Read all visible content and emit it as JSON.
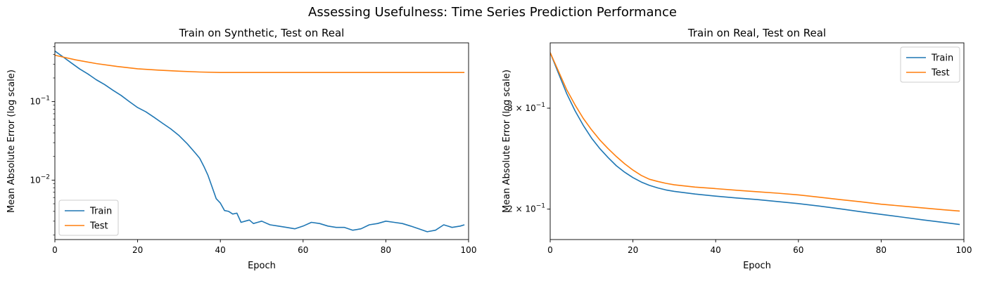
{
  "figure_title": "Assessing Usefulness: Time Series Prediction Performance",
  "colors": {
    "train": "#1f77b4",
    "test": "#ff7f0e"
  },
  "chart_data": [
    {
      "type": "line",
      "title": "Train on Synthetic, Test on Real",
      "xlabel": "Epoch",
      "ylabel": "Mean Absolute Error (log scale)",
      "yscale": "log",
      "xlim": [
        0,
        100
      ],
      "ylim": [
        0.00175,
        0.56
      ],
      "xticks": [
        0,
        20,
        40,
        60,
        80,
        100
      ],
      "yticks": [
        {
          "value": 0.01,
          "base": "10",
          "exp": "−2"
        },
        {
          "value": 0.1,
          "base": "10",
          "exp": "−1"
        }
      ],
      "grid": false,
      "legend_position": "lower-left",
      "series": [
        {
          "name": "Train",
          "x": [
            0,
            2,
            4,
            6,
            8,
            10,
            12,
            14,
            16,
            18,
            20,
            22,
            24,
            26,
            28,
            30,
            32,
            34,
            35,
            36,
            37,
            38,
            39,
            40,
            41,
            42,
            43,
            44,
            45,
            46,
            47,
            48,
            49,
            50,
            52,
            54,
            56,
            58,
            60,
            62,
            64,
            66,
            68,
            70,
            72,
            74,
            76,
            78,
            80,
            82,
            84,
            86,
            88,
            90,
            92,
            94,
            96,
            98,
            99
          ],
          "values": [
            0.44,
            0.37,
            0.31,
            0.26,
            0.225,
            0.19,
            0.165,
            0.14,
            0.12,
            0.1,
            0.084,
            0.074,
            0.063,
            0.053,
            0.045,
            0.037,
            0.029,
            0.022,
            0.019,
            0.015,
            0.0115,
            0.0082,
            0.0058,
            0.0051,
            0.0041,
            0.004,
            0.0037,
            0.0038,
            0.0029,
            0.003,
            0.0031,
            0.0028,
            0.0029,
            0.003,
            0.0027,
            0.0026,
            0.0025,
            0.0024,
            0.0026,
            0.0029,
            0.0028,
            0.0026,
            0.0025,
            0.0025,
            0.0023,
            0.0024,
            0.0027,
            0.0028,
            0.003,
            0.0029,
            0.0028,
            0.0026,
            0.0024,
            0.0022,
            0.0023,
            0.0027,
            0.0025,
            0.0026,
            0.0027
          ]
        },
        {
          "name": "Test",
          "x": [
            0,
            5,
            10,
            15,
            20,
            25,
            30,
            35,
            40,
            50,
            60,
            70,
            80,
            90,
            99
          ],
          "values": [
            0.39,
            0.34,
            0.305,
            0.28,
            0.262,
            0.252,
            0.244,
            0.238,
            0.235,
            0.235,
            0.235,
            0.235,
            0.235,
            0.235,
            0.235
          ]
        }
      ]
    },
    {
      "type": "line",
      "title": "Train on Real, Test on Real",
      "xlabel": "Epoch",
      "ylabel": "Mean Absolute Error (log scale)",
      "yscale": "log",
      "xlim": [
        0,
        100
      ],
      "ylim": [
        0.177,
        0.39
      ],
      "xticks": [
        0,
        20,
        40,
        60,
        80,
        100
      ],
      "yticks": [
        {
          "value": 0.2,
          "mant": "2",
          "base": "10",
          "exp": "−1"
        },
        {
          "value": 0.3,
          "mant": "3",
          "base": "10",
          "exp": "−1"
        }
      ],
      "grid": false,
      "legend_position": "top-right",
      "series": [
        {
          "name": "Train",
          "x": [
            0,
            2,
            4,
            6,
            8,
            10,
            12,
            14,
            16,
            18,
            20,
            22,
            24,
            26,
            28,
            30,
            35,
            40,
            45,
            50,
            55,
            60,
            65,
            70,
            75,
            80,
            85,
            90,
            95,
            99
          ],
          "values": [
            0.375,
            0.345,
            0.318,
            0.297,
            0.28,
            0.266,
            0.255,
            0.246,
            0.238,
            0.232,
            0.227,
            0.223,
            0.22,
            0.2178,
            0.216,
            0.2148,
            0.2125,
            0.2107,
            0.2092,
            0.2078,
            0.2062,
            0.2045,
            0.2025,
            0.2003,
            0.198,
            0.1958,
            0.1937,
            0.1916,
            0.1896,
            0.188
          ]
        },
        {
          "name": "Test",
          "x": [
            0,
            2,
            4,
            6,
            8,
            10,
            12,
            14,
            16,
            18,
            20,
            22,
            24,
            26,
            28,
            30,
            35,
            40,
            45,
            50,
            55,
            60,
            65,
            70,
            75,
            80,
            85,
            90,
            95,
            99
          ],
          "values": [
            0.375,
            0.348,
            0.323,
            0.304,
            0.288,
            0.275,
            0.264,
            0.255,
            0.247,
            0.24,
            0.234,
            0.229,
            0.2255,
            0.2235,
            0.2218,
            0.2205,
            0.2185,
            0.2172,
            0.2158,
            0.2145,
            0.2132,
            0.2118,
            0.2098,
            0.2078,
            0.206,
            0.204,
            0.2025,
            0.201,
            0.1995,
            0.1985
          ]
        }
      ]
    }
  ]
}
